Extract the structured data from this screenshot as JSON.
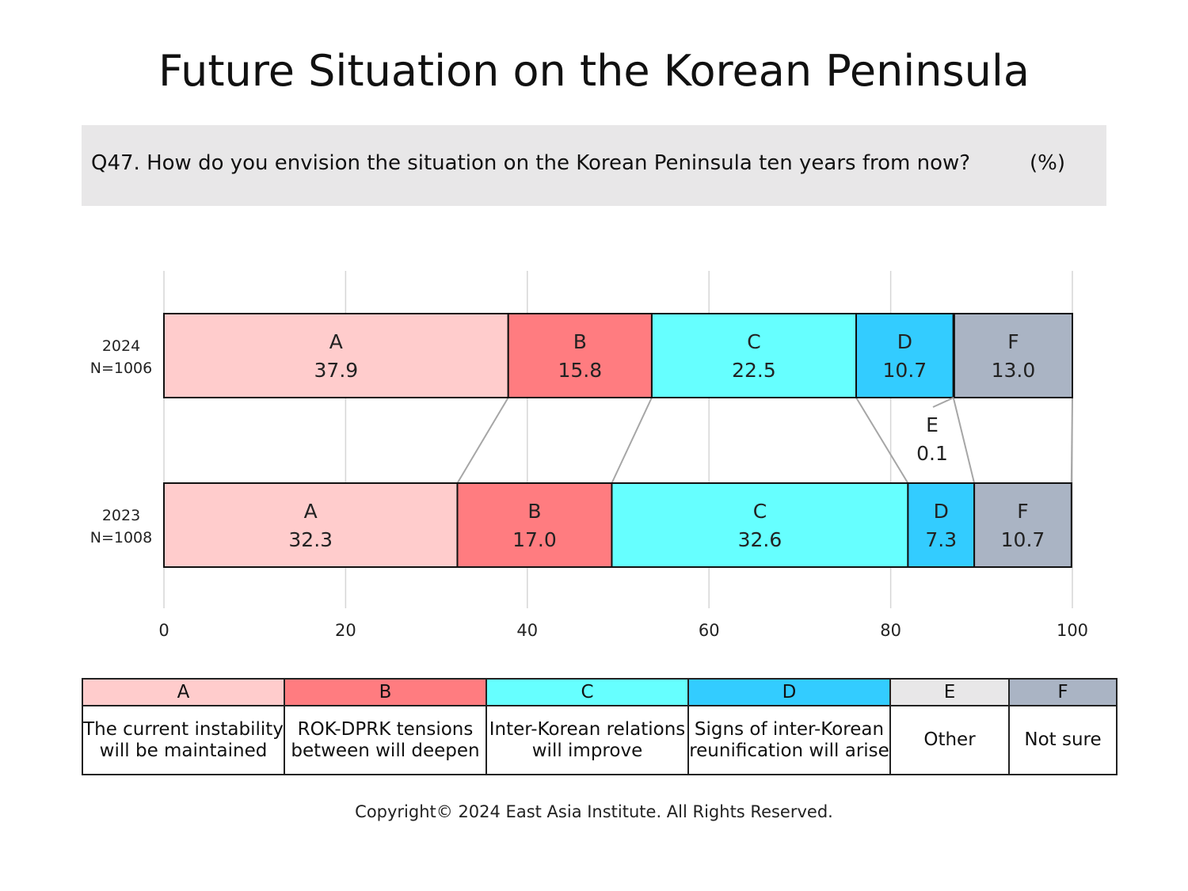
{
  "title": "Future Situation on the Korean Peninsula",
  "question": {
    "text": "Q47. How do you envision the situation on the Korean Peninsula ten years from now?",
    "unit": "(%)"
  },
  "colors": {
    "A": "#ffcccc",
    "B": "#ff7c80",
    "C": "#66ffff",
    "D": "#33ccff",
    "E": "#e8e7e8",
    "F": "#aab4c4"
  },
  "legend": {
    "codes": [
      "A",
      "B",
      "C",
      "D",
      "E",
      "F"
    ],
    "descriptions": [
      [
        "The current instability",
        "will be maintained"
      ],
      [
        "ROK-DPRK tensions",
        "between will deepen"
      ],
      [
        "Inter-Korean relations",
        "will improve"
      ],
      [
        "Signs of inter-Korean",
        "reunification will arise"
      ],
      [
        "Other"
      ],
      [
        "Not sure"
      ]
    ]
  },
  "copyright": "Copyright© 2024 East Asia Institute. All Rights Reserved.",
  "chart_data": {
    "type": "bar",
    "orientation": "horizontal",
    "stacked": true,
    "xlim": [
      0,
      100
    ],
    "xticks": [
      0,
      20,
      40,
      60,
      80,
      100
    ],
    "grid": true,
    "categories": [
      {
        "year": "2024",
        "n": "N=1006"
      },
      {
        "year": "2023",
        "n": "N=1008"
      }
    ],
    "series": [
      {
        "name": "A",
        "values": [
          37.9,
          32.3
        ],
        "labels": [
          "37.9",
          "32.3"
        ]
      },
      {
        "name": "B",
        "values": [
          15.8,
          17.0
        ],
        "labels": [
          "15.8",
          "17.0"
        ]
      },
      {
        "name": "C",
        "values": [
          22.5,
          32.6
        ],
        "labels": [
          "22.5",
          "32.6"
        ]
      },
      {
        "name": "D",
        "values": [
          10.7,
          7.3
        ],
        "labels": [
          "10.7",
          "7.3"
        ]
      },
      {
        "name": "E",
        "values": [
          0.1,
          0
        ],
        "labels": [
          "0.1",
          ""
        ]
      },
      {
        "name": "F",
        "values": [
          13.0,
          10.7
        ],
        "labels": [
          "13.0",
          "10.7"
        ]
      }
    ]
  }
}
